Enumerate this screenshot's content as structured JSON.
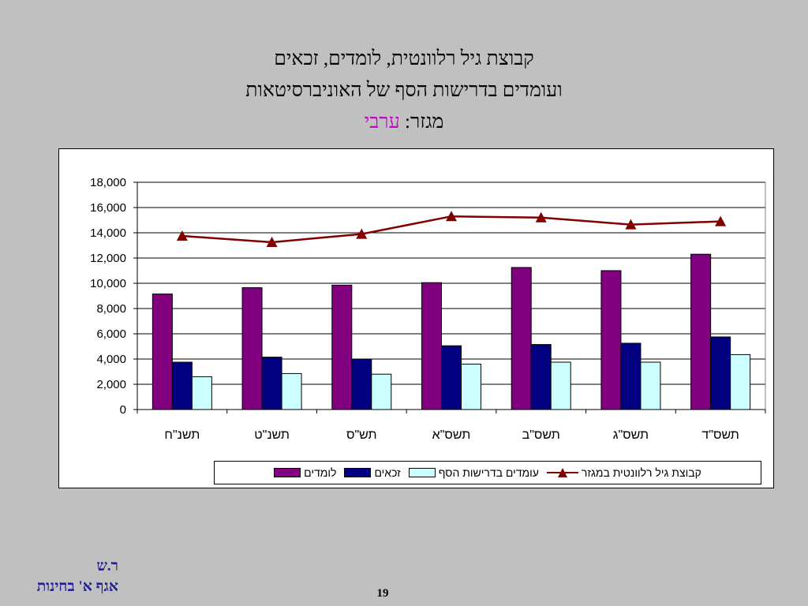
{
  "slide": {
    "title_line1": "קבוצת גיל רלוונטית, לומדים, זכאים",
    "title_line2": "ועומדים בדרישות הסף של האוניברסיטאות",
    "title_line3_prefix": "מגזר: ",
    "title_line3_highlight": "ערבי",
    "footer_line1": "ר.ש",
    "footer_line2": "אגף א' בחינות",
    "page_number": "19"
  },
  "colors": {
    "learners": "#800080",
    "eligible": "#000080",
    "threshold": "#ccffff",
    "age_group": "#800000",
    "title_highlight": "#cc00cc"
  },
  "chart_data": {
    "type": "bar",
    "categories": [
      "תשנ\"ח",
      "תשנ\"ט",
      "תש\"ס",
      "תשס\"א",
      "תשס\"ב",
      "תשס\"ג",
      "תשס\"ד"
    ],
    "series": [
      {
        "name": "לומדים",
        "type": "bar",
        "values": [
          9150,
          9650,
          9850,
          10050,
          11250,
          11000,
          12300
        ]
      },
      {
        "name": "זכאים",
        "type": "bar",
        "values": [
          3750,
          4150,
          4000,
          5050,
          5150,
          5250,
          5750
        ]
      },
      {
        "name": "עומדים בדרישות הסף",
        "type": "bar",
        "values": [
          2600,
          2850,
          2800,
          3600,
          3750,
          3750,
          4350
        ]
      },
      {
        "name": "קבוצת גיל רלוונטית במגזר",
        "type": "line",
        "marker": "triangle",
        "values": [
          13750,
          13250,
          13900,
          15300,
          15200,
          14650,
          14900
        ]
      }
    ],
    "yticks": [
      "0",
      "2,000",
      "4,000",
      "6,000",
      "8,000",
      "10,000",
      "12,000",
      "14,000",
      "16,000",
      "18,000"
    ],
    "ylim": [
      0,
      18000
    ],
    "grid": true,
    "legend_position": "bottom"
  }
}
